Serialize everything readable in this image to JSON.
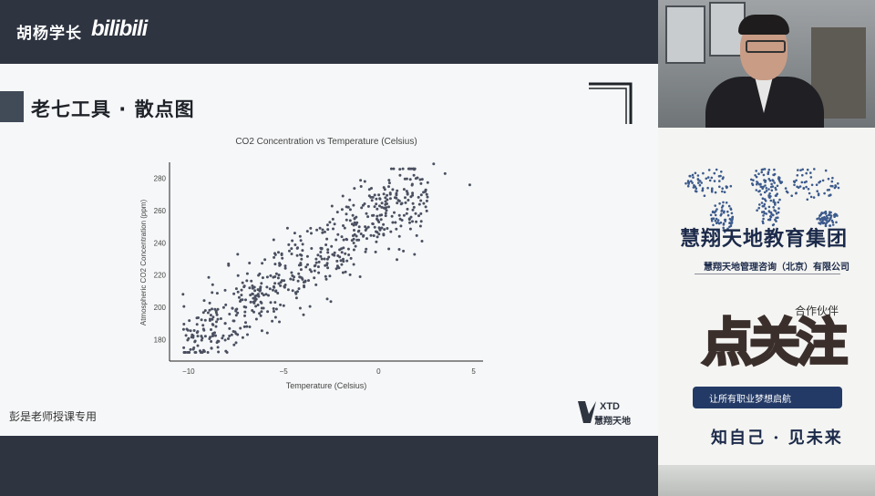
{
  "header": {
    "channel_name": "胡杨学长",
    "platform_logo": "bilibili"
  },
  "slide": {
    "title": "老七工具 · 散点图",
    "footnote": "彭是老师授课专用",
    "logo_en": "XTD",
    "logo_cn": "慧翔天地"
  },
  "chart_data": {
    "type": "scatter",
    "title": "CO2 Concentration vs Temperature (Celsius)",
    "xlabel": "Temperature (Celsius)",
    "ylabel": "Atmospheric CO2 Concentration (ppm)",
    "xlim": [
      -11,
      5.5
    ],
    "ylim": [
      170,
      290
    ],
    "xticks": [
      -10,
      -5,
      0,
      5
    ],
    "yticks": [
      180,
      200,
      220,
      240,
      260,
      280
    ],
    "xtick_labels": [
      "−10",
      "−5",
      "0",
      "5"
    ],
    "ytick_labels": [
      "180",
      "200",
      "220",
      "240",
      "260",
      "280"
    ],
    "point_color": "#4a5060",
    "trend": {
      "slope": 8.2,
      "intercept": 258,
      "spread": 14
    },
    "n_points": 620,
    "x_range": [
      -10.3,
      2.6
    ],
    "outliers": [
      [
        4.8,
        276
      ],
      [
        3.5,
        283
      ],
      [
        2.9,
        289
      ],
      [
        -6.5,
        204
      ],
      [
        -6.9,
        183
      ],
      [
        -7.5,
        178
      ]
    ]
  },
  "advert": {
    "group_name": "慧翔天地教育集团",
    "sub_name": "慧翔天地管理咨询（北京）有限公司",
    "partner_text": "合作伙伴",
    "sticker_text": "点关注",
    "pill_text": "让所有职业梦想启航",
    "slogan": "知自己 · 见未来"
  },
  "colors": {
    "bar_bg": "#2e3440",
    "slide_bg": "#f6f7f8",
    "accent": "#414a57",
    "brand_navy": "#1c2a4a"
  }
}
